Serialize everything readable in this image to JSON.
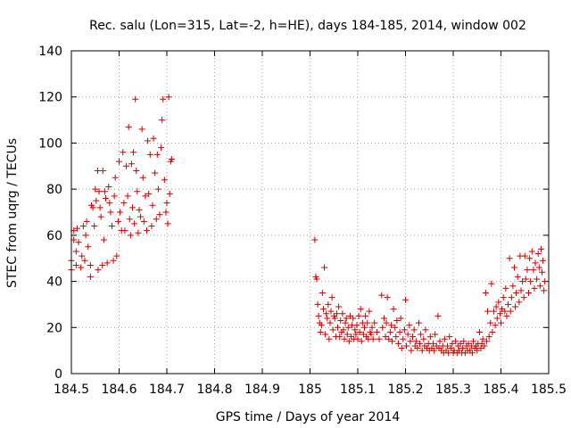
{
  "chart_data": {
    "type": "scatter",
    "title": "Rec. salu (Lon=315, Lat=-2, h=HE), days 184-185, 2014, window 002",
    "xlabel": "GPS time / Days of year 2014",
    "ylabel": "STEC from uqrg / TECUs",
    "xlim": [
      184.5,
      185.5
    ],
    "ylim": [
      0,
      140
    ],
    "grid": true,
    "marker": "+",
    "color": "#cc0000",
    "x_ticks": [
      184.5,
      184.6,
      184.7,
      184.8,
      184.9,
      185,
      185.1,
      185.2,
      185.3,
      185.4,
      185.5
    ],
    "x_tick_labels": [
      "184.5",
      "184.6",
      "184.7",
      "184.8",
      "184.9",
      "185",
      "185.1",
      "185.2",
      "185.3",
      "185.4",
      "185.5"
    ],
    "y_ticks": [
      0,
      20,
      40,
      60,
      80,
      100,
      120,
      140
    ],
    "y_tick_labels": [
      "0",
      "20",
      "40",
      "60",
      "80",
      "100",
      "120",
      "140"
    ],
    "series": [
      {
        "name": "STEC",
        "points": [
          [
            184.5,
            49
          ],
          [
            184.5,
            45
          ],
          [
            184.505,
            58
          ],
          [
            184.505,
            62
          ],
          [
            184.51,
            47
          ],
          [
            184.51,
            53
          ],
          [
            184.512,
            63
          ],
          [
            184.515,
            57
          ],
          [
            184.52,
            46
          ],
          [
            184.522,
            51
          ],
          [
            184.525,
            64
          ],
          [
            184.528,
            49
          ],
          [
            184.53,
            60
          ],
          [
            184.532,
            66
          ],
          [
            184.535,
            55
          ],
          [
            184.54,
            42
          ],
          [
            184.54,
            47
          ],
          [
            184.542,
            73
          ],
          [
            184.545,
            72
          ],
          [
            184.548,
            64
          ],
          [
            184.55,
            80
          ],
          [
            184.552,
            75
          ],
          [
            184.555,
            88
          ],
          [
            184.556,
            45
          ],
          [
            184.558,
            79
          ],
          [
            184.56,
            72
          ],
          [
            184.562,
            68
          ],
          [
            184.565,
            47
          ],
          [
            184.566,
            88
          ],
          [
            184.568,
            58
          ],
          [
            184.57,
            79
          ],
          [
            184.572,
            76
          ],
          [
            184.575,
            48
          ],
          [
            184.578,
            81
          ],
          [
            184.58,
            74
          ],
          [
            184.582,
            70
          ],
          [
            184.585,
            64
          ],
          [
            184.588,
            49
          ],
          [
            184.59,
            77
          ],
          [
            184.592,
            85
          ],
          [
            184.595,
            51
          ],
          [
            184.598,
            66
          ],
          [
            184.6,
            92
          ],
          [
            184.602,
            70
          ],
          [
            184.605,
            62
          ],
          [
            184.608,
            96
          ],
          [
            184.61,
            74
          ],
          [
            184.612,
            62
          ],
          [
            184.615,
            90
          ],
          [
            184.618,
            77
          ],
          [
            184.62,
            107
          ],
          [
            184.622,
            67
          ],
          [
            184.624,
            60
          ],
          [
            184.626,
            91
          ],
          [
            184.628,
            72
          ],
          [
            184.63,
            96
          ],
          [
            184.632,
            65
          ],
          [
            184.634,
            119
          ],
          [
            184.636,
            88
          ],
          [
            184.638,
            79
          ],
          [
            184.64,
            61
          ],
          [
            184.642,
            71
          ],
          [
            184.645,
            68
          ],
          [
            184.648,
            106
          ],
          [
            184.65,
            85
          ],
          [
            184.652,
            66
          ],
          [
            184.655,
            77
          ],
          [
            184.658,
            62
          ],
          [
            184.66,
            101
          ],
          [
            184.662,
            78
          ],
          [
            184.665,
            95
          ],
          [
            184.668,
            64
          ],
          [
            184.67,
            73
          ],
          [
            184.672,
            102
          ],
          [
            184.675,
            87
          ],
          [
            184.678,
            67
          ],
          [
            184.68,
            95
          ],
          [
            184.682,
            80
          ],
          [
            184.685,
            69
          ],
          [
            184.688,
            98
          ],
          [
            184.69,
            110
          ],
          [
            184.692,
            119
          ],
          [
            184.695,
            84
          ],
          [
            184.698,
            70
          ],
          [
            184.7,
            74
          ],
          [
            184.702,
            65
          ],
          [
            184.704,
            120
          ],
          [
            184.706,
            78
          ],
          [
            184.708,
            92
          ],
          [
            184.71,
            93
          ],
          [
            185.01,
            58
          ],
          [
            185.012,
            42
          ],
          [
            185.014,
            41
          ],
          [
            185.016,
            30
          ],
          [
            185.018,
            25
          ],
          [
            185.02,
            22
          ],
          [
            185.022,
            18
          ],
          [
            185.024,
            21
          ],
          [
            185.026,
            35
          ],
          [
            185.028,
            28
          ],
          [
            185.03,
            46
          ],
          [
            185.032,
            17
          ],
          [
            185.034,
            26
          ],
          [
            185.036,
            24
          ],
          [
            185.038,
            30
          ],
          [
            185.04,
            15
          ],
          [
            185.042,
            22
          ],
          [
            185.044,
            27
          ],
          [
            185.046,
            33
          ],
          [
            185.048,
            19
          ],
          [
            185.05,
            25
          ],
          [
            185.052,
            24
          ],
          [
            185.054,
            16
          ],
          [
            185.056,
            26
          ],
          [
            185.058,
            20
          ],
          [
            185.06,
            29
          ],
          [
            185.062,
            16
          ],
          [
            185.064,
            23
          ],
          [
            185.066,
            18
          ],
          [
            185.068,
            26
          ],
          [
            185.07,
            19
          ],
          [
            185.072,
            15
          ],
          [
            185.074,
            22
          ],
          [
            185.076,
            24
          ],
          [
            185.078,
            17
          ],
          [
            185.08,
            20
          ],
          [
            185.082,
            14
          ],
          [
            185.084,
            25
          ],
          [
            185.086,
            16
          ],
          [
            185.088,
            21
          ],
          [
            185.09,
            24
          ],
          [
            185.092,
            15
          ],
          [
            185.094,
            19
          ],
          [
            185.096,
            17
          ],
          [
            185.098,
            21
          ],
          [
            185.1,
            15
          ],
          [
            185.102,
            25
          ],
          [
            185.104,
            18
          ],
          [
            185.106,
            28
          ],
          [
            185.108,
            14
          ],
          [
            185.11,
            22
          ],
          [
            185.112,
            17
          ],
          [
            185.114,
            20
          ],
          [
            185.116,
            25
          ],
          [
            185.118,
            16
          ],
          [
            185.12,
            22
          ],
          [
            185.122,
            15
          ],
          [
            185.124,
            27
          ],
          [
            185.126,
            18
          ],
          [
            185.128,
            17
          ],
          [
            185.13,
            20
          ],
          [
            185.132,
            15
          ],
          [
            185.135,
            22
          ],
          [
            185.14,
            18
          ],
          [
            185.145,
            15
          ],
          [
            185.15,
            34
          ],
          [
            185.152,
            20
          ],
          [
            185.155,
            24
          ],
          [
            185.158,
            16
          ],
          [
            185.16,
            22
          ],
          [
            185.162,
            33
          ],
          [
            185.165,
            15
          ],
          [
            185.168,
            18
          ],
          [
            185.17,
            21
          ],
          [
            185.172,
            14
          ],
          [
            185.175,
            28
          ],
          [
            185.178,
            20
          ],
          [
            185.18,
            16
          ],
          [
            185.182,
            23
          ],
          [
            185.185,
            13
          ],
          [
            185.188,
            18
          ],
          [
            185.19,
            24
          ],
          [
            185.192,
            11
          ],
          [
            185.195,
            15
          ],
          [
            185.198,
            19
          ],
          [
            185.2,
            32
          ],
          [
            185.202,
            12
          ],
          [
            185.205,
            17
          ],
          [
            185.208,
            21
          ],
          [
            185.21,
            14
          ],
          [
            185.212,
            10
          ],
          [
            185.215,
            16
          ],
          [
            185.218,
            19
          ],
          [
            185.22,
            12
          ],
          [
            185.222,
            14
          ],
          [
            185.225,
            11
          ],
          [
            185.228,
            22
          ],
          [
            185.23,
            13
          ],
          [
            185.232,
            17
          ],
          [
            185.235,
            10
          ],
          [
            185.238,
            15
          ],
          [
            185.24,
            12
          ],
          [
            185.242,
            19
          ],
          [
            185.245,
            11
          ],
          [
            185.248,
            13
          ],
          [
            185.25,
            10
          ],
          [
            185.252,
            16
          ],
          [
            185.255,
            11
          ],
          [
            185.258,
            13
          ],
          [
            185.26,
            10
          ],
          [
            185.262,
            17
          ],
          [
            185.265,
            12
          ],
          [
            185.268,
            25
          ],
          [
            185.27,
            11
          ],
          [
            185.272,
            14
          ],
          [
            185.275,
            10
          ],
          [
            185.278,
            12
          ],
          [
            185.28,
            9
          ],
          [
            185.282,
            15
          ],
          [
            185.285,
            10
          ],
          [
            185.288,
            12
          ],
          [
            185.29,
            9
          ],
          [
            185.292,
            16
          ],
          [
            185.295,
            11
          ],
          [
            185.298,
            13
          ],
          [
            185.3,
            9
          ],
          [
            185.302,
            10
          ],
          [
            185.305,
            14
          ],
          [
            185.308,
            9
          ],
          [
            185.31,
            12
          ],
          [
            185.312,
            10
          ],
          [
            185.315,
            13
          ],
          [
            185.318,
            9
          ],
          [
            185.32,
            11
          ],
          [
            185.322,
            14
          ],
          [
            185.325,
            9
          ],
          [
            185.328,
            12
          ],
          [
            185.33,
            10
          ],
          [
            185.332,
            13
          ],
          [
            185.335,
            10
          ],
          [
            185.338,
            12
          ],
          [
            185.34,
            9
          ],
          [
            185.342,
            14
          ],
          [
            185.345,
            11
          ],
          [
            185.348,
            12
          ],
          [
            185.35,
            10
          ],
          [
            185.352,
            13
          ],
          [
            185.355,
            18
          ],
          [
            185.358,
            11
          ],
          [
            185.36,
            13
          ],
          [
            185.362,
            15
          ],
          [
            185.365,
            12
          ],
          [
            185.368,
            35
          ],
          [
            185.37,
            14
          ],
          [
            185.372,
            27
          ],
          [
            185.375,
            16
          ],
          [
            185.378,
            22
          ],
          [
            185.38,
            39
          ],
          [
            185.382,
            18
          ],
          [
            185.385,
            27
          ],
          [
            185.388,
            21
          ],
          [
            185.39,
            29
          ],
          [
            185.392,
            24
          ],
          [
            185.395,
            31
          ],
          [
            185.398,
            26
          ],
          [
            185.4,
            22
          ],
          [
            185.402,
            28
          ],
          [
            185.405,
            33
          ],
          [
            185.408,
            27
          ],
          [
            185.41,
            37
          ],
          [
            185.412,
            25
          ],
          [
            185.415,
            30
          ],
          [
            185.418,
            50
          ],
          [
            185.42,
            27
          ],
          [
            185.422,
            33
          ],
          [
            185.425,
            38
          ],
          [
            185.428,
            46
          ],
          [
            185.43,
            29
          ],
          [
            185.432,
            35
          ],
          [
            185.435,
            42
          ],
          [
            185.438,
            31
          ],
          [
            185.44,
            51
          ],
          [
            185.442,
            36
          ],
          [
            185.445,
            40
          ],
          [
            185.448,
            33
          ],
          [
            185.45,
            51
          ],
          [
            185.452,
            41
          ],
          [
            185.455,
            45
          ],
          [
            185.458,
            35
          ],
          [
            185.46,
            50
          ],
          [
            185.462,
            40
          ],
          [
            185.465,
            53
          ],
          [
            185.468,
            45
          ],
          [
            185.47,
            37
          ],
          [
            185.472,
            48
          ],
          [
            185.475,
            41
          ],
          [
            185.478,
            52
          ],
          [
            185.48,
            46
          ],
          [
            185.482,
            38
          ],
          [
            185.484,
            54
          ],
          [
            185.486,
            44
          ],
          [
            185.488,
            49
          ],
          [
            185.49,
            36
          ],
          [
            185.492,
            40
          ]
        ]
      }
    ]
  }
}
